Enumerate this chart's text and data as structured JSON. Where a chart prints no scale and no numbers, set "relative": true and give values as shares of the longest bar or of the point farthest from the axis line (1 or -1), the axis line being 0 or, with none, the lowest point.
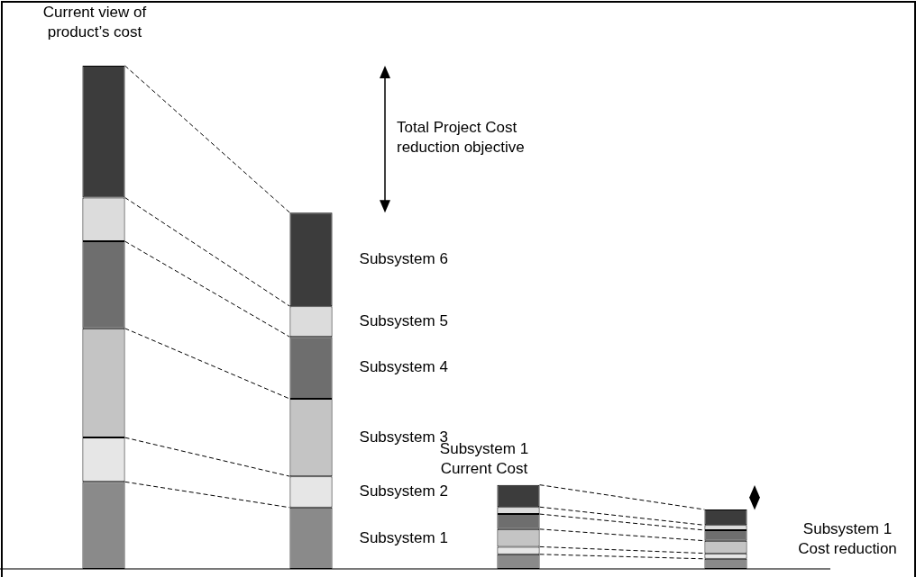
{
  "chart_data": {
    "type": "bar",
    "relative": true,
    "stacked": true,
    "legend": false,
    "grid": false,
    "categories": [
      null,
      null,
      null,
      null
    ],
    "series": [
      {
        "name": "Subsystem 1",
        "color": "#8a8a8a",
        "values": [
          0.173,
          0.122,
          0.029,
          0.02
        ]
      },
      {
        "name": "Subsystem 2",
        "color": "#e6e6e6",
        "values": [
          0.088,
          0.062,
          0.015,
          0.011
        ]
      },
      {
        "name": "Subsystem 3",
        "color": "#c4c4c4",
        "values": [
          0.217,
          0.154,
          0.035,
          0.025
        ]
      },
      {
        "name": "Subsystem 4",
        "color": "#6e6e6e",
        "values": [
          0.173,
          0.123,
          0.03,
          0.021
        ]
      },
      {
        "name": "Subsystem 5",
        "color": "#dcdcdc",
        "values": [
          0.087,
          0.061,
          0.014,
          0.01
        ]
      },
      {
        "name": "Subsystem 6",
        "color": "#3c3c3c",
        "values": [
          0.262,
          0.186,
          0.044,
          0.031
        ]
      }
    ],
    "annotations": [
      "Current view of  product’s cost",
      "Total Project Cost reduction objective",
      "Subsystem 1 Current Cost",
      "Subsystem 1 Cost reduction"
    ]
  }
}
